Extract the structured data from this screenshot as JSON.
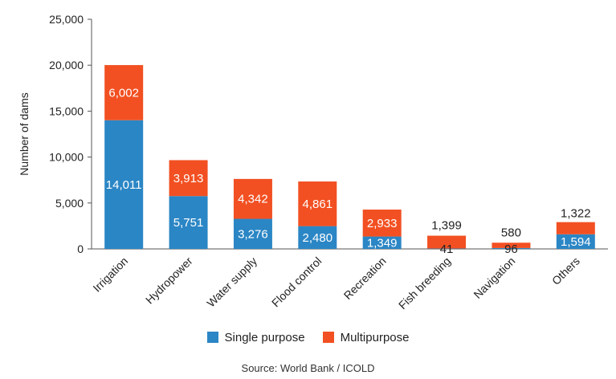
{
  "chart_data": {
    "type": "bar",
    "stacked": true,
    "categories": [
      "Irrigation",
      "Hydropower",
      "Water supply",
      "Flood control",
      "Recreation",
      "Fish breeding",
      "Navigation",
      "Others"
    ],
    "series": [
      {
        "name": "Single purpose",
        "color": "#2b86c5",
        "values": [
          14011,
          5751,
          3276,
          2480,
          1349,
          41,
          96,
          1594
        ],
        "labels": [
          "14,011",
          "5,751",
          "3,276",
          "2,480",
          "1,349",
          "41",
          "96",
          "1,594"
        ]
      },
      {
        "name": "Multipurpose",
        "color": "#f25022",
        "values": [
          6002,
          3913,
          4342,
          4861,
          2933,
          1399,
          580,
          1322
        ],
        "labels": [
          "6,002",
          "3,913",
          "4,342",
          "4,861",
          "2,933",
          "1,399",
          "580",
          "1,322"
        ]
      }
    ],
    "ylabel": "Number of dams",
    "ylim": [
      0,
      25000
    ],
    "yticks": [
      0,
      5000,
      10000,
      15000,
      20000,
      25000
    ],
    "ytick_labels": [
      "0",
      "5,000",
      "10,000",
      "15,000",
      "20,000",
      "25,000"
    ],
    "grid": false,
    "legend_position": "bottom"
  },
  "source": "Source: World Bank / ICOLD"
}
